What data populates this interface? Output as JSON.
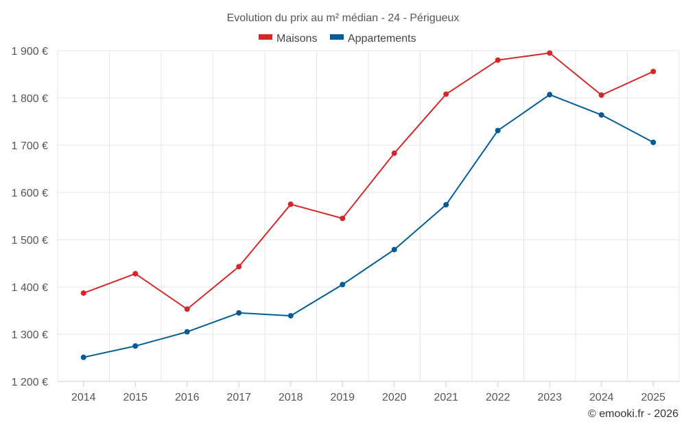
{
  "chart_data": {
    "type": "line",
    "title": "Evolution du prix au m² médian - 24 - Périgueux",
    "categories": [
      "2014",
      "2015",
      "2016",
      "2017",
      "2018",
      "2019",
      "2020",
      "2021",
      "2022",
      "2023",
      "2024",
      "2025"
    ],
    "series": [
      {
        "name": "Maisons",
        "color": "#d62728",
        "values": [
          1387,
          1428,
          1353,
          1443,
          1575,
          1545,
          1683,
          1808,
          1880,
          1895,
          1806,
          1856
        ]
      },
      {
        "name": "Appartements",
        "color": "#005b96",
        "values": [
          1251,
          1275,
          1305,
          1345,
          1339,
          1405,
          1479,
          1574,
          1731,
          1807,
          1764,
          1706
        ]
      }
    ],
    "ylim": [
      1200,
      1900
    ],
    "yticks": [
      1200,
      1300,
      1400,
      1500,
      1600,
      1700,
      1800,
      1900
    ],
    "ytick_labels": [
      "1 200 €",
      "1 300 €",
      "1 400 €",
      "1 500 €",
      "1 600 €",
      "1 700 €",
      "1 800 €",
      "1 900 €"
    ],
    "xlabel": "",
    "ylabel": "",
    "grid": true,
    "legend": "top-center"
  },
  "credit": "© emooki.fr - 2026"
}
